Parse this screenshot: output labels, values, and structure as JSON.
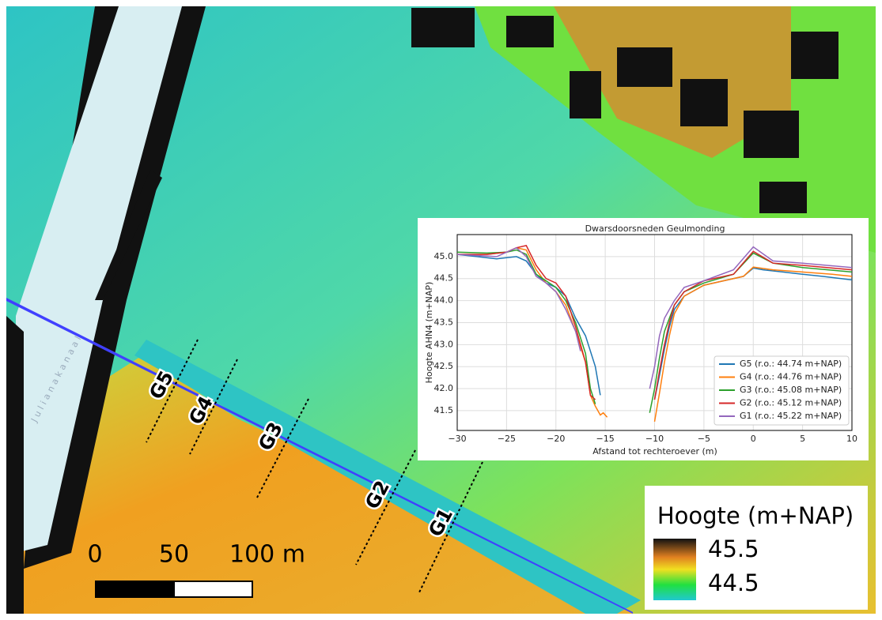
{
  "map": {
    "canal_label": "Julianakanaal",
    "profiles": [
      "G5",
      "G4",
      "G3",
      "G2",
      "G1"
    ],
    "scale_bar": [
      "0",
      "50",
      "100 m"
    ],
    "legend": {
      "title": "Hoogte (m+NAP)",
      "high": "45.5",
      "low": "44.5"
    }
  },
  "chart_data": {
    "type": "line",
    "title": "Dwarsdoorsneden Geulmonding",
    "x_label": "Afstand tot rechteroever (m)",
    "y_label": "Hoogte AHN4 (m+NAP)",
    "xlim": [
      -30,
      10
    ],
    "xticks": [
      {
        "value": -30,
        "label": "−30"
      },
      {
        "value": -25,
        "label": "−25"
      },
      {
        "value": -20,
        "label": "−20"
      },
      {
        "value": -15,
        "label": "−15"
      },
      {
        "value": -10,
        "label": "−10"
      },
      {
        "value": -5,
        "label": "−5"
      },
      0,
      5,
      10
    ],
    "ylim": [
      41.05,
      45.5
    ],
    "yticks": [
      41.5,
      {
        "value": 42,
        "label": "42.0"
      },
      42.5,
      {
        "value": 43,
        "label": "43.0"
      },
      43.5,
      {
        "value": 44,
        "label": "44.0"
      },
      44.5,
      {
        "value": 45,
        "label": "45.0"
      }
    ],
    "grid": true,
    "legend_position": "lower right",
    "series": [
      {
        "name": "G5 (r.o.: 44.74 m+NAP)",
        "color": "#1f77b4",
        "x": [
          -30,
          -28,
          -26,
          -24,
          -23,
          -22,
          -21,
          -20,
          -19,
          -18,
          -17,
          -16,
          -15.5,
          null,
          -10,
          -9.5,
          -9,
          -8.5,
          -8,
          -7,
          -5,
          -3,
          -1,
          0,
          1,
          3,
          5,
          7,
          10
        ],
        "values": [
          45.05,
          45.0,
          44.95,
          45.0,
          44.9,
          44.6,
          44.4,
          44.3,
          44.1,
          43.6,
          43.2,
          42.5,
          41.85,
          null,
          41.75,
          42.3,
          42.9,
          43.4,
          43.8,
          44.1,
          44.35,
          44.45,
          44.55,
          44.74,
          44.7,
          44.65,
          44.6,
          44.55,
          44.47
        ]
      },
      {
        "name": "G4 (r.o.: 44.76 m+NAP)",
        "color": "#ff7f0e",
        "x": [
          -30,
          -27,
          -25,
          -24,
          -23,
          -22,
          -21,
          -20,
          -19,
          -18,
          -17,
          -16.5,
          -16,
          -15.5,
          -15.2,
          -14.8,
          null,
          -10,
          -9.5,
          -9,
          -8.5,
          -8,
          -7,
          -5,
          -3,
          -1,
          0,
          2,
          5,
          8,
          10
        ],
        "values": [
          45.05,
          45.05,
          45.1,
          45.2,
          45.15,
          44.7,
          44.4,
          44.2,
          43.9,
          43.3,
          42.6,
          41.85,
          41.6,
          41.4,
          41.45,
          41.35,
          null,
          41.25,
          41.9,
          42.6,
          43.2,
          43.7,
          44.1,
          44.35,
          44.45,
          44.55,
          44.76,
          44.7,
          44.65,
          44.6,
          44.55
        ]
      },
      {
        "name": "G3 (r.o.: 45.08 m+NAP)",
        "color": "#2ca02c",
        "x": [
          -30,
          -27,
          -25,
          -24,
          -23,
          -22,
          -20,
          -19,
          -18,
          -17,
          -16.5,
          -16,
          null,
          -10.5,
          -10,
          -9.5,
          -9,
          -8,
          -7,
          -5,
          -2,
          0,
          2,
          5,
          10
        ],
        "values": [
          45.1,
          45.08,
          45.1,
          45.15,
          45.05,
          44.6,
          44.3,
          44.0,
          43.5,
          42.8,
          42.0,
          41.65,
          null,
          41.45,
          42.0,
          42.7,
          43.3,
          43.9,
          44.2,
          44.4,
          44.6,
          45.08,
          44.85,
          44.75,
          44.65
        ]
      },
      {
        "name": "G2 (r.o.: 45.12 m+NAP)",
        "color": "#d62728",
        "x": [
          -30,
          -27,
          -25,
          -24,
          -23,
          -22,
          -21,
          -20,
          -19,
          -18,
          -17,
          -16.5,
          -16,
          null,
          -10,
          -9.5,
          -9,
          -8.5,
          -8,
          -7,
          -5,
          -2,
          0,
          2,
          5,
          10
        ],
        "values": [
          45.05,
          45.05,
          45.1,
          45.2,
          45.25,
          44.8,
          44.5,
          44.4,
          44.1,
          43.4,
          42.6,
          41.85,
          41.75,
          null,
          41.75,
          42.4,
          43.0,
          43.5,
          43.9,
          44.2,
          44.45,
          44.6,
          45.12,
          44.85,
          44.8,
          44.7
        ]
      },
      {
        "name": "G1 (r.o.: 45.22 m+NAP)",
        "color": "#9467bd",
        "x": [
          -30,
          -26,
          -24,
          -23,
          -22,
          -21,
          -20,
          -19,
          -18,
          -17.5,
          null,
          -10.5,
          -10,
          -9.5,
          -9,
          -8,
          -7,
          -5,
          -2,
          0,
          2,
          5,
          10
        ],
        "values": [
          45.05,
          45.0,
          45.2,
          45.0,
          44.55,
          44.4,
          44.2,
          43.8,
          43.3,
          42.85,
          null,
          42.0,
          42.5,
          43.2,
          43.6,
          44.0,
          44.3,
          44.45,
          44.7,
          45.22,
          44.9,
          44.85,
          44.75
        ]
      }
    ]
  }
}
